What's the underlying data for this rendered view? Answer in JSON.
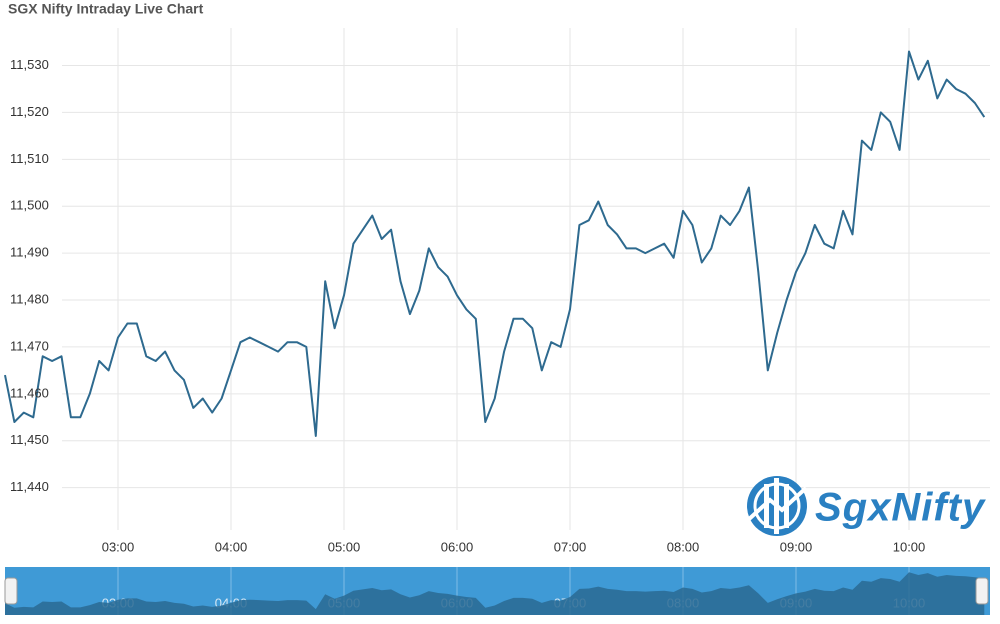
{
  "chart_data": {
    "type": "line",
    "title": "SGX Nifty Intraday Live Chart",
    "logo_text": "SgxNifty",
    "x": [
      "02:00",
      "02:05",
      "02:10",
      "02:15",
      "02:20",
      "02:25",
      "02:30",
      "02:35",
      "02:40",
      "02:45",
      "02:50",
      "02:55",
      "03:00",
      "03:05",
      "03:10",
      "03:15",
      "03:20",
      "03:25",
      "03:30",
      "03:35",
      "03:40",
      "03:45",
      "03:50",
      "03:55",
      "04:00",
      "04:05",
      "04:10",
      "04:15",
      "04:20",
      "04:25",
      "04:30",
      "04:35",
      "04:40",
      "04:45",
      "04:50",
      "04:55",
      "05:00",
      "05:05",
      "05:10",
      "05:15",
      "05:20",
      "05:25",
      "05:30",
      "05:35",
      "05:40",
      "05:45",
      "05:50",
      "05:55",
      "06:00",
      "06:05",
      "06:10",
      "06:15",
      "06:20",
      "06:25",
      "06:30",
      "06:35",
      "06:40",
      "06:45",
      "06:50",
      "06:55",
      "07:00",
      "07:05",
      "07:10",
      "07:15",
      "07:20",
      "07:25",
      "07:30",
      "07:35",
      "07:40",
      "07:45",
      "07:50",
      "07:55",
      "08:00",
      "08:05",
      "08:10",
      "08:15",
      "08:20",
      "08:25",
      "08:30",
      "08:35",
      "08:40",
      "08:45",
      "08:50",
      "08:55",
      "09:00",
      "09:05",
      "09:10",
      "09:15",
      "09:20",
      "09:25",
      "09:30",
      "09:35",
      "09:40",
      "09:45",
      "09:50",
      "09:55",
      "10:00",
      "10:05",
      "10:10",
      "10:15",
      "10:20",
      "10:25",
      "10:30",
      "10:35",
      "10:40"
    ],
    "series": [
      {
        "name": "SGX Nifty",
        "color": "#2e6a8f",
        "values": [
          11464,
          11454,
          11456,
          11455,
          11468,
          11467,
          11468,
          11455,
          11455,
          11460,
          11467,
          11465,
          11472,
          11475,
          11475,
          11468,
          11467,
          11469,
          11465,
          11463,
          11457,
          11459,
          11456,
          11459,
          11465,
          11471,
          11472,
          11471,
          11470,
          11469,
          11471,
          11471,
          11470,
          11451,
          11484,
          11474,
          11481,
          11492,
          11495,
          11498,
          11493,
          11495,
          11484,
          11477,
          11482,
          11491,
          11487,
          11485,
          11481,
          11478,
          11476,
          11454,
          11459,
          11469,
          11476,
          11476,
          11474,
          11465,
          11471,
          11470,
          11478,
          11496,
          11497,
          11501,
          11496,
          11494,
          11491,
          11491,
          11490,
          11491,
          11492,
          11489,
          11499,
          11496,
          11488,
          11491,
          11498,
          11496,
          11499,
          11504,
          11486,
          11465,
          11473,
          11480,
          11486,
          11490,
          11496,
          11492,
          11491,
          11499,
          11494,
          11514,
          11512,
          11520,
          11518,
          11512,
          11533,
          11527,
          11531,
          11523,
          11527,
          11525,
          11524,
          11522,
          11519
        ]
      }
    ],
    "xlim": [
      "02:00",
      "10:43"
    ],
    "xticks": [
      "03:00",
      "04:00",
      "05:00",
      "06:00",
      "07:00",
      "08:00",
      "09:00",
      "10:00"
    ],
    "ylim": [
      11438,
      11538
    ],
    "yticks": [
      {
        "value": 11440,
        "label": "11,440"
      },
      {
        "value": 11450,
        "label": "11,450"
      },
      {
        "value": 11460,
        "label": "11,460"
      },
      {
        "value": 11470,
        "label": "11,470"
      },
      {
        "value": 11480,
        "label": "11,480"
      },
      {
        "value": 11490,
        "label": "11,490"
      },
      {
        "value": 11500,
        "label": "11,500"
      },
      {
        "value": 11510,
        "label": "11,510"
      },
      {
        "value": 11520,
        "label": "11,520"
      },
      {
        "value": 11530,
        "label": "11,530"
      }
    ],
    "grid": true
  }
}
